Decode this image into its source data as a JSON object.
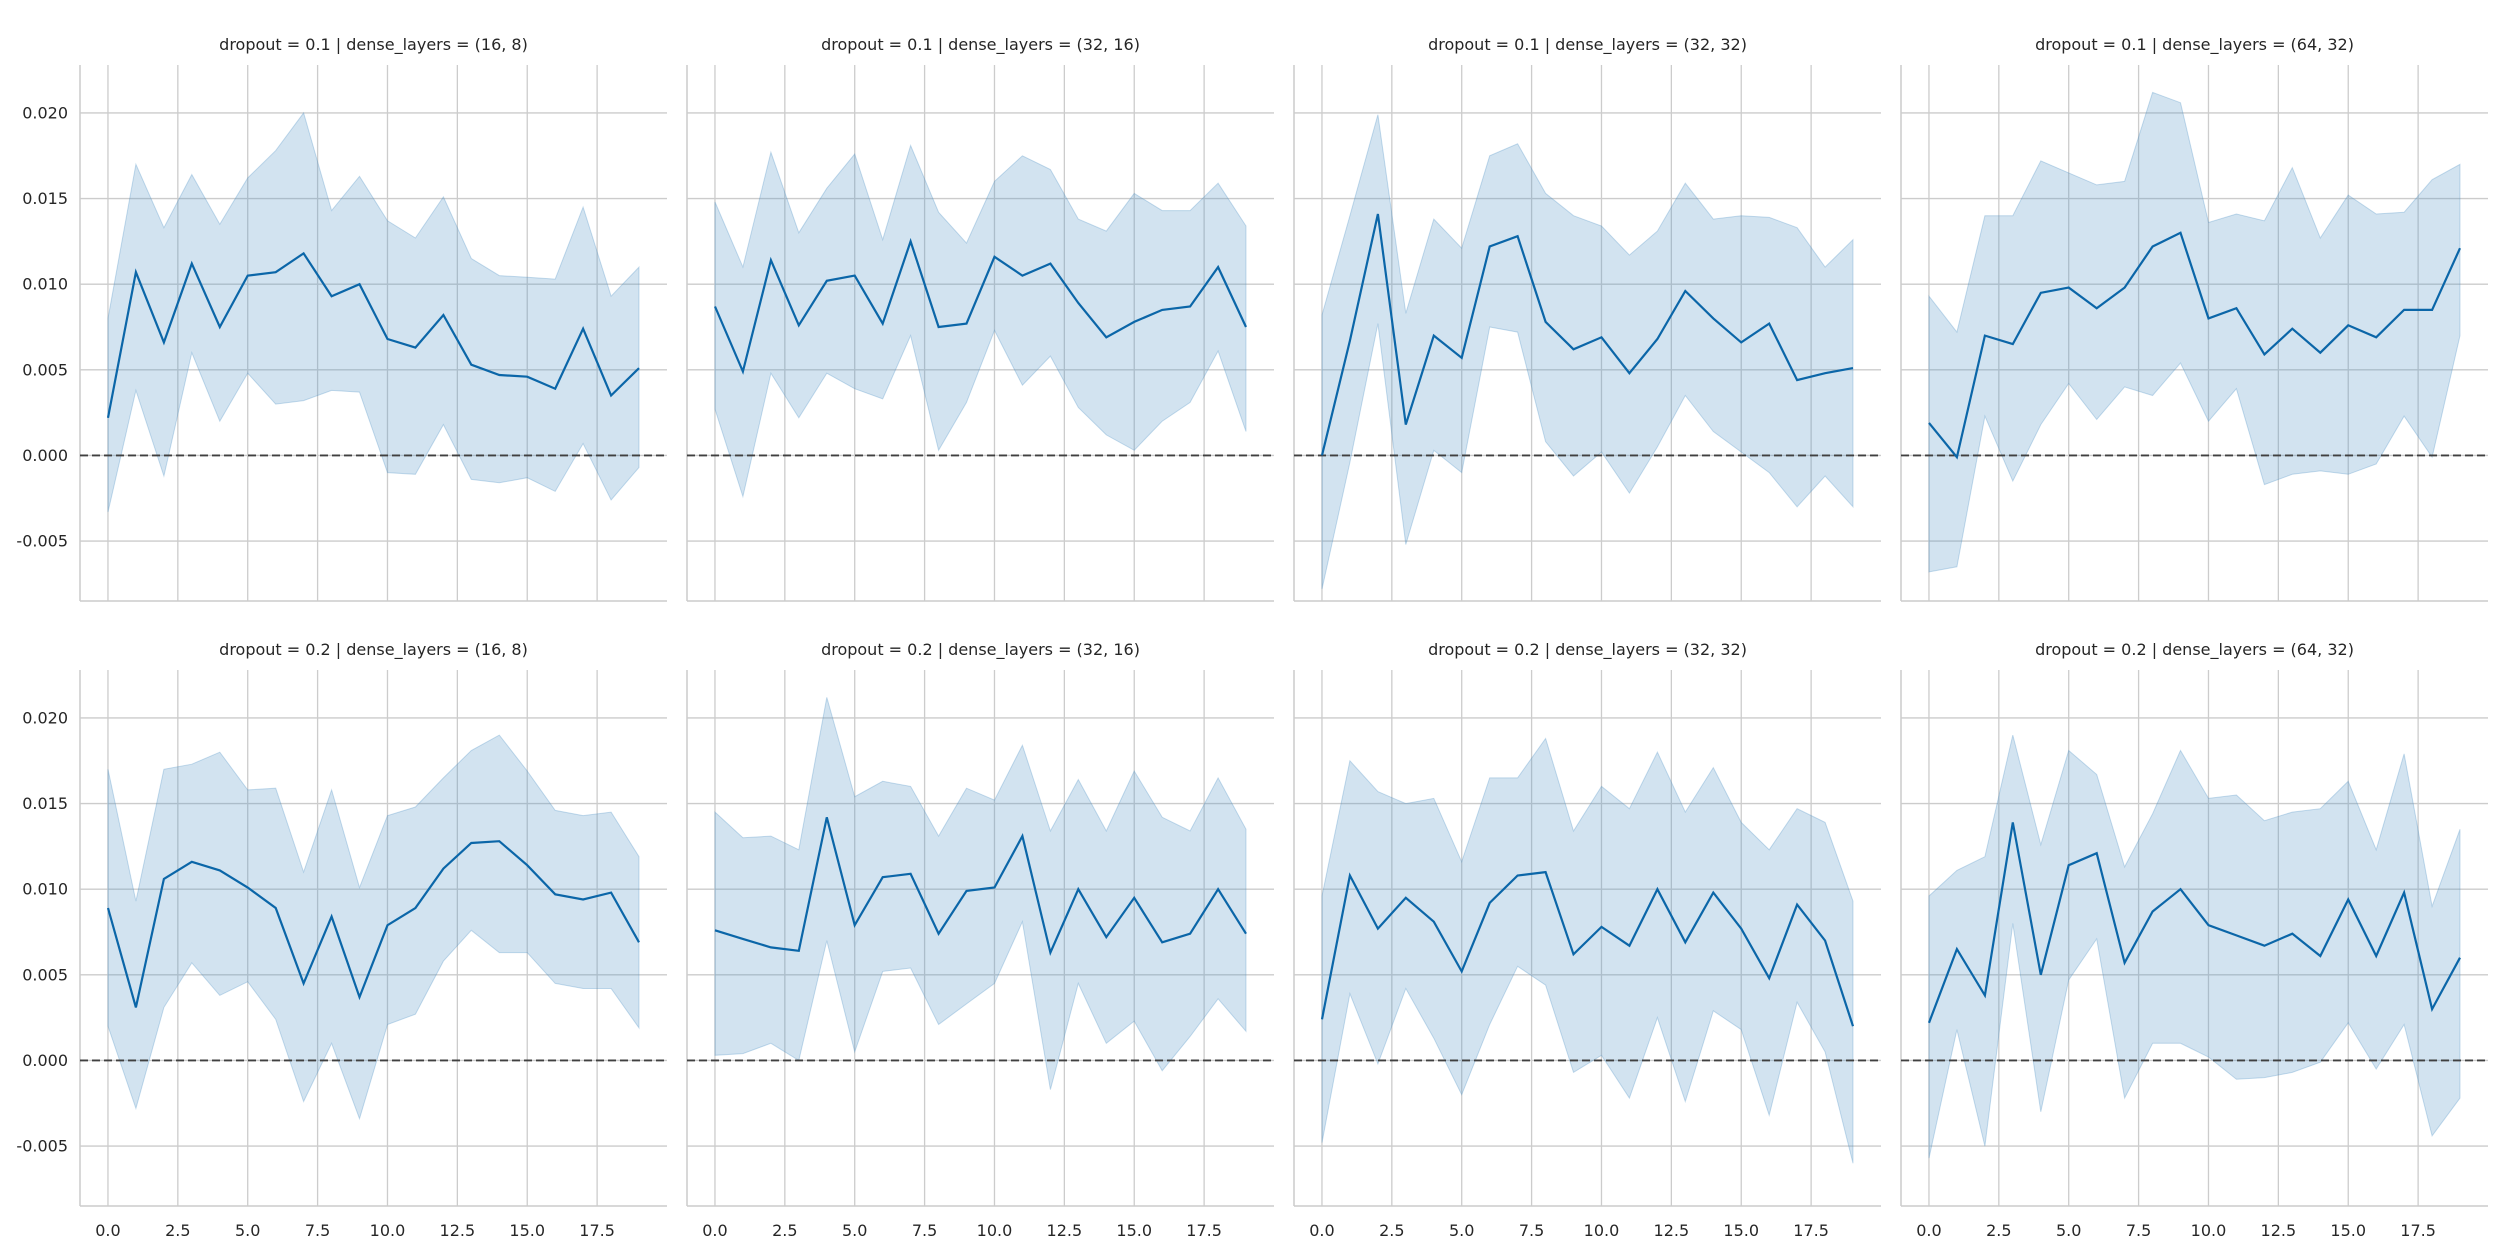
{
  "chart_data": {
    "type": "line",
    "layout": "facet-grid 2x4",
    "shared_y": true,
    "shared_x": true,
    "ylim": [
      -0.0085,
      0.0228
    ],
    "xlim": [
      -1,
      20
    ],
    "yticks": [
      -0.005,
      0.0,
      0.005,
      0.01,
      0.015,
      0.02
    ],
    "ytick_labels": [
      "-0.005",
      "0.000",
      "0.005",
      "0.010",
      "0.015",
      "0.020"
    ],
    "xticks": [
      0,
      2.5,
      5,
      7.5,
      10,
      12.5,
      15,
      17.5
    ],
    "xtick_labels": [
      "0.0",
      "2.5",
      "5.0",
      "7.5",
      "10.0",
      "12.5",
      "15.0",
      "17.5"
    ],
    "reference_line": {
      "y": 0.0,
      "style": "dashed",
      "color": "#404040"
    },
    "grid": true,
    "colors": {
      "line": "#0b66a8",
      "band": "#4a90c2"
    },
    "x": [
      0,
      1,
      2,
      3,
      4,
      5,
      6,
      7,
      8,
      9,
      10,
      11,
      12,
      13,
      14,
      15,
      16,
      17,
      18,
      19
    ],
    "panels": [
      {
        "title": "dropout = 0.1 | dense_layers = (16, 8)",
        "mean": [
          0.0022,
          0.0107,
          0.0066,
          0.0112,
          0.0075,
          0.0105,
          0.0107,
          0.0118,
          0.0093,
          0.01,
          0.0068,
          0.0063,
          0.0082,
          0.0053,
          0.0047,
          0.0046,
          0.0039,
          0.0074,
          0.0035,
          0.0051
        ],
        "upper": [
          0.008,
          0.017,
          0.0133,
          0.0164,
          0.0135,
          0.0162,
          0.0178,
          0.02,
          0.0143,
          0.0163,
          0.0137,
          0.0127,
          0.0151,
          0.0115,
          0.0105,
          0.0104,
          0.0103,
          0.0145,
          0.0093,
          0.011
        ],
        "lower": [
          -0.0033,
          0.0038,
          -0.0012,
          0.006,
          0.002,
          0.0048,
          0.003,
          0.0032,
          0.0038,
          0.0037,
          -0.001,
          -0.0011,
          0.0018,
          -0.0014,
          -0.0016,
          -0.0013,
          -0.0021,
          0.0007,
          -0.0026,
          -0.0007
        ]
      },
      {
        "title": "dropout = 0.1 | dense_layers = (32, 16)",
        "mean": [
          0.0087,
          0.0049,
          0.0114,
          0.0076,
          0.0102,
          0.0105,
          0.0077,
          0.0125,
          0.0075,
          0.0077,
          0.0116,
          0.0105,
          0.0112,
          0.0089,
          0.0069,
          0.0078,
          0.0085,
          0.0087,
          0.011,
          0.0075
        ],
        "upper": [
          0.0148,
          0.011,
          0.0177,
          0.013,
          0.0156,
          0.0176,
          0.0126,
          0.0181,
          0.0142,
          0.0124,
          0.016,
          0.0175,
          0.0167,
          0.0138,
          0.0131,
          0.0153,
          0.0143,
          0.0143,
          0.0159,
          0.0134
        ],
        "lower": [
          0.0027,
          -0.0024,
          0.0048,
          0.0022,
          0.0048,
          0.0039,
          0.0033,
          0.007,
          0.0003,
          0.0031,
          0.0073,
          0.0041,
          0.0058,
          0.0028,
          0.0012,
          0.0003,
          0.002,
          0.0031,
          0.0061,
          0.0014
        ]
      },
      {
        "title": "dropout = 0.1 | dense_layers = (32, 32)",
        "mean": [
          0.0,
          0.0067,
          0.0141,
          0.0018,
          0.007,
          0.0057,
          0.0122,
          0.0128,
          0.0078,
          0.0062,
          0.0069,
          0.0048,
          0.0068,
          0.0096,
          0.008,
          0.0066,
          0.0077,
          0.0044,
          0.0048,
          0.0051
        ],
        "upper": [
          0.0082,
          0.014,
          0.0199,
          0.0083,
          0.0138,
          0.0121,
          0.0175,
          0.0182,
          0.0153,
          0.014,
          0.0134,
          0.0117,
          0.0131,
          0.0159,
          0.0138,
          0.014,
          0.0139,
          0.0133,
          0.011,
          0.0126
        ],
        "lower": [
          -0.0078,
          -0.0004,
          0.0077,
          -0.0052,
          0.0003,
          -0.001,
          0.0075,
          0.0072,
          0.0008,
          -0.0012,
          0.0002,
          -0.0022,
          0.0005,
          0.0035,
          0.0014,
          0.0002,
          -0.001,
          -0.003,
          -0.0012,
          -0.003
        ]
      },
      {
        "title": "dropout = 0.1 | dense_layers = (64, 32)",
        "mean": [
          0.0019,
          -0.0001,
          0.007,
          0.0065,
          0.0095,
          0.0098,
          0.0086,
          0.0098,
          0.0122,
          0.013,
          0.008,
          0.0086,
          0.0059,
          0.0074,
          0.006,
          0.0076,
          0.0069,
          0.0085,
          0.0085,
          0.0121
        ],
        "upper": [
          0.0093,
          0.0072,
          0.014,
          0.014,
          0.0172,
          0.0165,
          0.0158,
          0.016,
          0.0212,
          0.0206,
          0.0136,
          0.0141,
          0.0137,
          0.0168,
          0.0127,
          0.0152,
          0.0141,
          0.0142,
          0.0161,
          0.017
        ],
        "lower": [
          -0.0068,
          -0.0065,
          0.0023,
          -0.0015,
          0.0018,
          0.0042,
          0.0021,
          0.004,
          0.0035,
          0.0054,
          0.002,
          0.0039,
          -0.0017,
          -0.0011,
          -0.0009,
          -0.0011,
          -0.0005,
          0.0023,
          -0.0001,
          0.007
        ]
      },
      {
        "title": "dropout = 0.2 | dense_layers = (16, 8)",
        "mean": [
          0.0089,
          0.0031,
          0.0106,
          0.0116,
          0.0111,
          0.0101,
          0.0089,
          0.0045,
          0.0084,
          0.0037,
          0.0079,
          0.0089,
          0.0112,
          0.0127,
          0.0128,
          0.0114,
          0.0097,
          0.0094,
          0.0098,
          0.0069
        ],
        "upper": [
          0.017,
          0.0093,
          0.017,
          0.0173,
          0.018,
          0.0158,
          0.0159,
          0.011,
          0.0158,
          0.0101,
          0.0143,
          0.0148,
          0.0165,
          0.0181,
          0.019,
          0.0169,
          0.0146,
          0.0143,
          0.0145,
          0.0119
        ],
        "lower": [
          0.002,
          -0.0028,
          0.0031,
          0.0057,
          0.0038,
          0.0046,
          0.0024,
          -0.0024,
          0.001,
          -0.0034,
          0.0021,
          0.0027,
          0.0058,
          0.0076,
          0.0063,
          0.0063,
          0.0045,
          0.0042,
          0.0042,
          0.0019
        ]
      },
      {
        "title": "dropout = 0.2 | dense_layers = (32, 16)",
        "mean": [
          0.0076,
          0.0071,
          0.0066,
          0.0064,
          0.0142,
          0.0079,
          0.0107,
          0.0109,
          0.0074,
          0.0099,
          0.0101,
          0.0131,
          0.0063,
          0.01,
          0.0072,
          0.0095,
          0.0069,
          0.0074,
          0.01,
          0.0074
        ],
        "upper": [
          0.0145,
          0.013,
          0.0131,
          0.0123,
          0.0212,
          0.0154,
          0.0163,
          0.016,
          0.0131,
          0.0159,
          0.0152,
          0.0184,
          0.0134,
          0.0164,
          0.0134,
          0.0169,
          0.0142,
          0.0134,
          0.0165,
          0.0135
        ],
        "lower": [
          0.0003,
          0.0004,
          0.001,
          0.0,
          0.007,
          0.0005,
          0.0052,
          0.0054,
          0.0021,
          0.0033,
          0.0045,
          0.0081,
          -0.0017,
          0.0045,
          0.001,
          0.0023,
          -0.0006,
          0.0014,
          0.0036,
          0.0017
        ]
      },
      {
        "title": "dropout = 0.2 | dense_layers = (32, 32)",
        "mean": [
          0.0024,
          0.0108,
          0.0077,
          0.0095,
          0.0081,
          0.0052,
          0.0092,
          0.0108,
          0.011,
          0.0062,
          0.0078,
          0.0067,
          0.01,
          0.0069,
          0.0098,
          0.0077,
          0.0048,
          0.0091,
          0.007,
          0.002
        ],
        "upper": [
          0.0096,
          0.0175,
          0.0157,
          0.015,
          0.0153,
          0.0116,
          0.0165,
          0.0165,
          0.0188,
          0.0134,
          0.016,
          0.0147,
          0.018,
          0.0145,
          0.0171,
          0.0139,
          0.0123,
          0.0147,
          0.0139,
          0.0093
        ],
        "lower": [
          -0.0048,
          0.0039,
          -0.0002,
          0.0042,
          0.0013,
          -0.002,
          0.0021,
          0.0055,
          0.0044,
          -0.0007,
          0.0003,
          -0.0022,
          0.0025,
          -0.0024,
          0.0029,
          0.0018,
          -0.0032,
          0.0034,
          0.0005,
          -0.006
        ]
      },
      {
        "title": "dropout = 0.2 | dense_layers = (64, 32)",
        "mean": [
          0.0022,
          0.0065,
          0.0038,
          0.0139,
          0.005,
          0.0114,
          0.0121,
          0.0057,
          0.0087,
          0.01,
          0.0079,
          0.0073,
          0.0067,
          0.0074,
          0.0061,
          0.0094,
          0.0061,
          0.0098,
          0.003,
          0.006
        ],
        "upper": [
          0.0096,
          0.0111,
          0.0119,
          0.019,
          0.0126,
          0.0181,
          0.0167,
          0.0113,
          0.0144,
          0.0181,
          0.0153,
          0.0155,
          0.014,
          0.0145,
          0.0147,
          0.0163,
          0.0123,
          0.0179,
          0.009,
          0.0135
        ],
        "lower": [
          -0.0057,
          0.0018,
          -0.005,
          0.008,
          -0.003,
          0.0047,
          0.0071,
          -0.0022,
          0.001,
          0.001,
          0.0002,
          -0.0011,
          -0.001,
          -0.0007,
          -0.0001,
          0.0022,
          -0.0005,
          0.0021,
          -0.0044,
          -0.0022
        ]
      }
    ]
  }
}
